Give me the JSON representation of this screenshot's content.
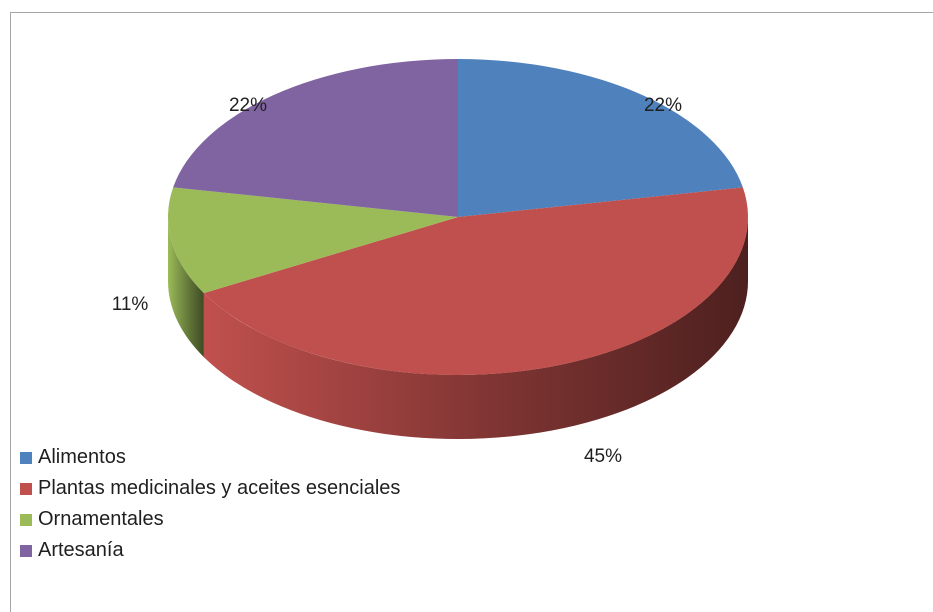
{
  "chart_data": {
    "type": "pie",
    "title": "",
    "legend_position": "bottom-left",
    "categories": [
      "Alimentos",
      "Plantas medicinales y aceites esenciales",
      "Ornamentales",
      "Artesanía"
    ],
    "values": [
      22,
      45,
      11,
      22
    ],
    "data_labels": [
      "22%",
      "45%",
      "11%",
      "22%"
    ],
    "colors": [
      "#4f81bd",
      "#c0504d",
      "#9bbb59",
      "#8064a2"
    ]
  }
}
